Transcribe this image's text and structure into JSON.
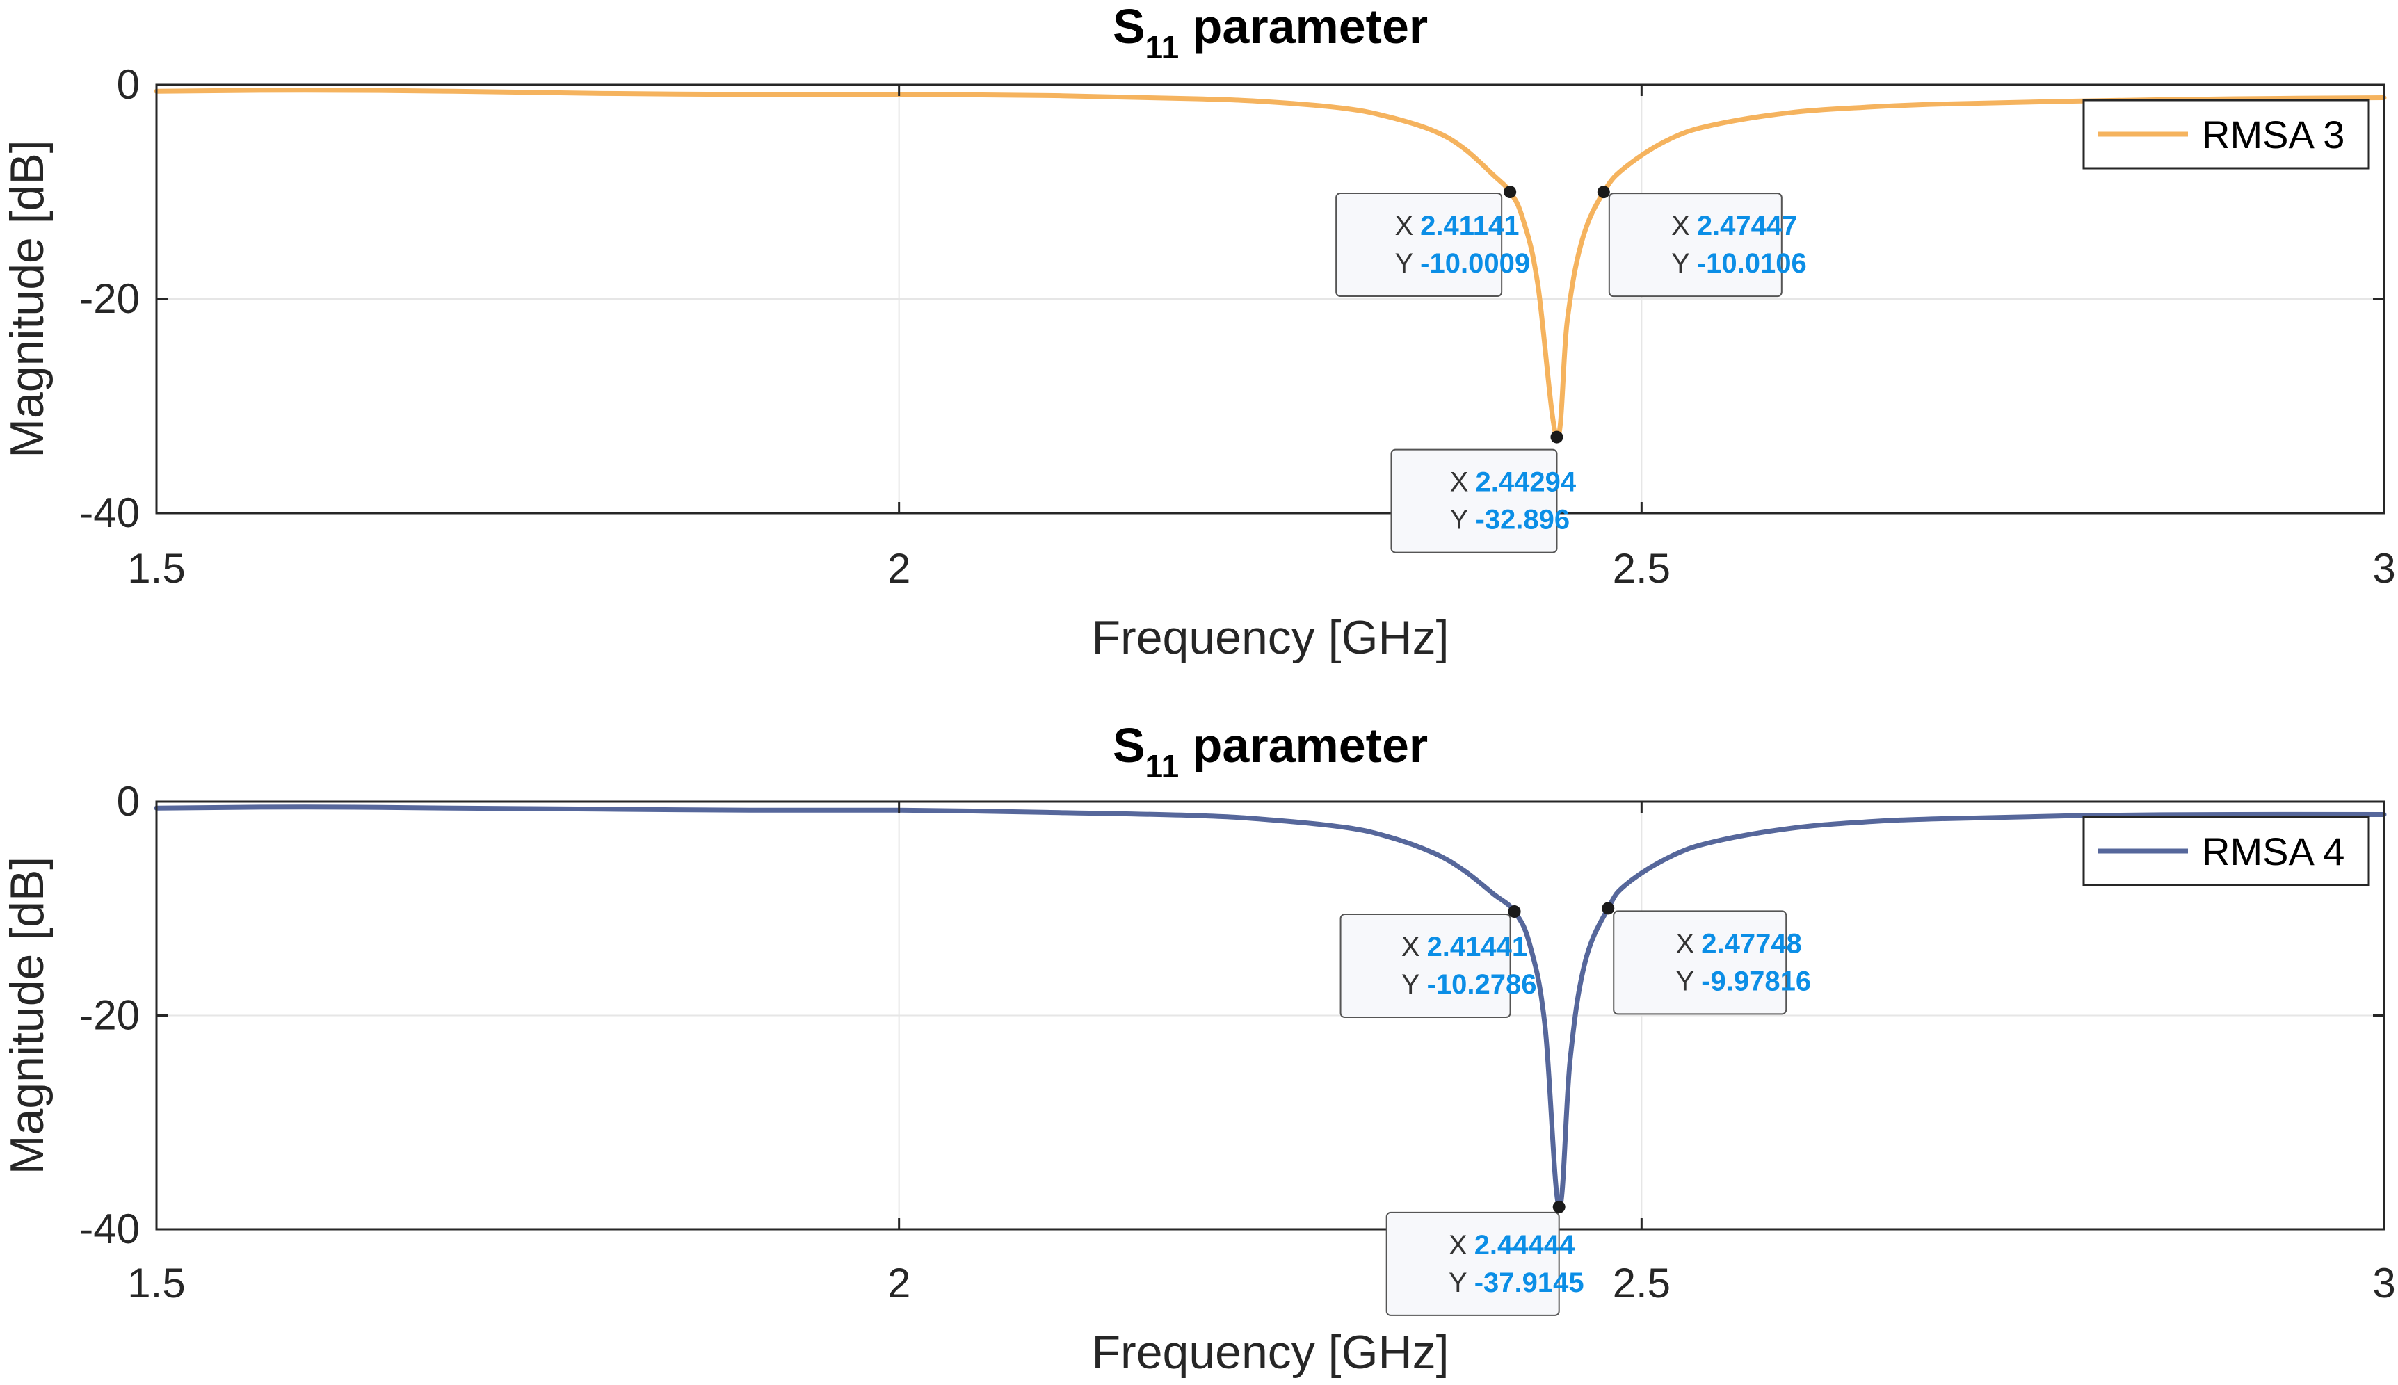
{
  "colors": {
    "rmsa3": "#F5B35E",
    "rmsa4": "#56679B",
    "grid": "#e6e6e6",
    "axis": "#262626",
    "datatip_value": "#0b8ee6"
  },
  "chart_data": [
    {
      "type": "line",
      "title": "S",
      "title_subscript": "11",
      "title_suffix": " parameter",
      "xlabel": "Frequency [GHz]",
      "ylabel": "Magnitude [dB]",
      "xlim": [
        1.5,
        3
      ],
      "ylim": [
        -40,
        0
      ],
      "xticks": [
        1.5,
        2,
        2.5,
        3
      ],
      "xtick_labels": [
        "1.5",
        "2",
        "2.5",
        "3"
      ],
      "yticks": [
        0,
        -20,
        -40
      ],
      "ytick_labels": [
        "0",
        "-20",
        "-40"
      ],
      "grid": true,
      "legend": "top-right",
      "series": [
        {
          "name": "RMSA 3",
          "color": "#F5B35E",
          "x": [
            1.5,
            1.6,
            1.7,
            1.8,
            1.9,
            2.0,
            2.1,
            2.2,
            2.25,
            2.3,
            2.33,
            2.36,
            2.38,
            2.4,
            2.41141,
            2.42,
            2.43,
            2.44294,
            2.45,
            2.46,
            2.47447,
            2.49,
            2.52,
            2.55,
            2.6,
            2.65,
            2.7,
            2.8,
            2.9,
            3.0
          ],
          "y": [
            -0.6,
            -0.5,
            -0.6,
            -0.8,
            -0.9,
            -0.9,
            -1.0,
            -1.3,
            -1.6,
            -2.2,
            -3.0,
            -4.3,
            -5.9,
            -8.4,
            -10.0009,
            -12.5,
            -18.5,
            -32.896,
            -22.0,
            -14.5,
            -10.0106,
            -7.6,
            -5.0,
            -3.7,
            -2.6,
            -2.1,
            -1.8,
            -1.5,
            -1.3,
            -1.2
          ],
          "datatips": [
            {
              "x": "2.41141",
              "y": "-10.0009"
            },
            {
              "x": "2.47447",
              "y": "-10.0106"
            },
            {
              "x": "2.44294",
              "y": "-32.896"
            }
          ]
        }
      ]
    },
    {
      "type": "line",
      "title": "S",
      "title_subscript": "11",
      "title_suffix": " parameter",
      "xlabel": "Frequency [GHz]",
      "ylabel": "Magnitude [dB]",
      "xlim": [
        1.5,
        3
      ],
      "ylim": [
        -40,
        0
      ],
      "xticks": [
        1.5,
        2,
        2.5,
        3
      ],
      "xtick_labels": [
        "1.5",
        "2",
        "2.5",
        "3"
      ],
      "yticks": [
        0,
        -20,
        -40
      ],
      "ytick_labels": [
        "0",
        "-20",
        "-40"
      ],
      "grid": true,
      "legend": "top-right",
      "series": [
        {
          "name": "RMSA 4",
          "color": "#56679B",
          "x": [
            1.5,
            1.6,
            1.7,
            1.8,
            1.9,
            2.0,
            2.1,
            2.2,
            2.25,
            2.3,
            2.33,
            2.36,
            2.38,
            2.4,
            2.41441,
            2.425,
            2.435,
            2.44444,
            2.452,
            2.462,
            2.47748,
            2.49,
            2.52,
            2.55,
            2.6,
            2.65,
            2.7,
            2.8,
            2.9,
            3.0
          ],
          "y": [
            -0.6,
            -0.5,
            -0.6,
            -0.7,
            -0.8,
            -0.8,
            -1.0,
            -1.3,
            -1.7,
            -2.4,
            -3.3,
            -4.8,
            -6.4,
            -8.6,
            -10.2786,
            -13.5,
            -21.0,
            -37.9145,
            -24.0,
            -15.0,
            -9.97816,
            -7.7,
            -5.1,
            -3.7,
            -2.5,
            -1.9,
            -1.6,
            -1.3,
            -1.2,
            -1.2
          ],
          "datatips": [
            {
              "x": "2.41441",
              "y": "-10.2786"
            },
            {
              "x": "2.47748",
              "y": "-9.97816"
            },
            {
              "x": "2.44444",
              "y": "-37.9145"
            }
          ]
        }
      ]
    }
  ]
}
